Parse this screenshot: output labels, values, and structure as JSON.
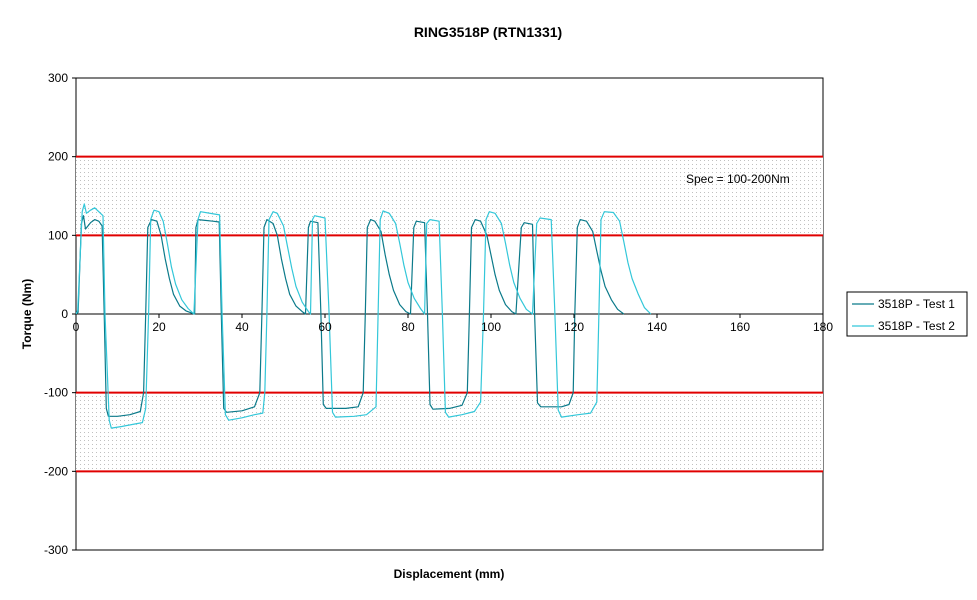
{
  "chart_data": {
    "type": "line",
    "title": "RING3518P (RTN1331)",
    "xlabel": "Displacement (mm)",
    "ylabel": "Torque (Nm)",
    "xlim": [
      0,
      180
    ],
    "ylim": [
      -300,
      300
    ],
    "xticks": [
      0,
      20,
      40,
      60,
      80,
      100,
      120,
      140,
      160,
      180
    ],
    "yticks": [
      300,
      200,
      100,
      0,
      -100,
      -200,
      -300
    ],
    "grid": false,
    "legend": "right",
    "spec_band_color": "#c0c0c0",
    "spec_line_color": "#e00000",
    "annotation": "Spec = 100-200Nm",
    "spec_lines": [
      200,
      100,
      -100,
      -200
    ],
    "series": [
      {
        "name": "3518P - Test 1",
        "color": "#0b7a8a",
        "points": [
          [
            0,
            0
          ],
          [
            0.5,
            2
          ],
          [
            1.3,
            115
          ],
          [
            1.8,
            125
          ],
          [
            2.3,
            108
          ],
          [
            3.5,
            116
          ],
          [
            4.5,
            120
          ],
          [
            5.5,
            118
          ],
          [
            6.3,
            112
          ],
          [
            6.8,
            0
          ],
          [
            7.3,
            -120
          ],
          [
            7.8,
            -130
          ],
          [
            10,
            -130
          ],
          [
            13,
            -128
          ],
          [
            15.5,
            -124
          ],
          [
            16.3,
            -100
          ],
          [
            16.8,
            0
          ],
          [
            17.3,
            110
          ],
          [
            18.2,
            120
          ],
          [
            19.5,
            118
          ],
          [
            20.5,
            100
          ],
          [
            21.5,
            70
          ],
          [
            22.5,
            45
          ],
          [
            23.5,
            25
          ],
          [
            25,
            10
          ],
          [
            26.5,
            4
          ],
          [
            28,
            1
          ],
          [
            28.6,
            0
          ],
          [
            28.9,
            110
          ],
          [
            29.4,
            120
          ],
          [
            33,
            118
          ],
          [
            34.5,
            117
          ],
          [
            35,
            0
          ],
          [
            35.6,
            -120
          ],
          [
            36.3,
            -125
          ],
          [
            40,
            -123
          ],
          [
            43,
            -118
          ],
          [
            44.3,
            -100
          ],
          [
            44.8,
            0
          ],
          [
            45.3,
            110
          ],
          [
            46,
            120
          ],
          [
            47.5,
            115
          ],
          [
            48.5,
            100
          ],
          [
            49.5,
            70
          ],
          [
            50.5,
            45
          ],
          [
            51.5,
            25
          ],
          [
            53,
            10
          ],
          [
            54.5,
            3
          ],
          [
            55.3,
            0
          ],
          [
            56,
            110
          ],
          [
            56.5,
            118
          ],
          [
            58.3,
            116
          ],
          [
            59,
            0
          ],
          [
            59.6,
            -115
          ],
          [
            60.3,
            -120
          ],
          [
            65,
            -120
          ],
          [
            68,
            -118
          ],
          [
            69.2,
            -100
          ],
          [
            69.7,
            0
          ],
          [
            70.2,
            110
          ],
          [
            71,
            120
          ],
          [
            72,
            118
          ],
          [
            73.5,
            105
          ],
          [
            74.5,
            75
          ],
          [
            75.5,
            50
          ],
          [
            76.5,
            30
          ],
          [
            78,
            12
          ],
          [
            79.5,
            3
          ],
          [
            80.6,
            0
          ],
          [
            81.4,
            110
          ],
          [
            82,
            118
          ],
          [
            84,
            116
          ],
          [
            84.7,
            0
          ],
          [
            85.3,
            -115
          ],
          [
            86,
            -121
          ],
          [
            90,
            -120
          ],
          [
            93,
            -116
          ],
          [
            94.3,
            -100
          ],
          [
            94.8,
            0
          ],
          [
            95.3,
            110
          ],
          [
            96.2,
            120
          ],
          [
            97.5,
            118
          ],
          [
            99,
            100
          ],
          [
            100,
            75
          ],
          [
            101,
            50
          ],
          [
            102,
            30
          ],
          [
            103.5,
            12
          ],
          [
            105,
            3
          ],
          [
            106,
            0
          ],
          [
            107.3,
            110
          ],
          [
            108,
            116
          ],
          [
            110,
            114
          ],
          [
            110.5,
            0
          ],
          [
            111.2,
            -113
          ],
          [
            112,
            -118
          ],
          [
            117,
            -118
          ],
          [
            118.8,
            -115
          ],
          [
            119.8,
            -100
          ],
          [
            120.2,
            0
          ],
          [
            120.8,
            110
          ],
          [
            121.5,
            120
          ],
          [
            123,
            118
          ],
          [
            124.5,
            105
          ],
          [
            125.5,
            80
          ],
          [
            126.5,
            55
          ],
          [
            127.5,
            35
          ],
          [
            129,
            18
          ],
          [
            130.5,
            6
          ],
          [
            132,
            0
          ]
        ]
      },
      {
        "name": "3518P - Test 2",
        "color": "#33c7d9",
        "points": [
          [
            0,
            0
          ],
          [
            0.4,
            5
          ],
          [
            1.5,
            130
          ],
          [
            2,
            140
          ],
          [
            2.5,
            128
          ],
          [
            3.5,
            132
          ],
          [
            4.5,
            135
          ],
          [
            5.5,
            130
          ],
          [
            6.5,
            125
          ],
          [
            7,
            0
          ],
          [
            8,
            -135
          ],
          [
            8.5,
            -145
          ],
          [
            11,
            -143
          ],
          [
            14,
            -140
          ],
          [
            16,
            -138
          ],
          [
            16.8,
            -120
          ],
          [
            17.5,
            0
          ],
          [
            18,
            120
          ],
          [
            18.8,
            132
          ],
          [
            20,
            130
          ],
          [
            21,
            118
          ],
          [
            22,
            90
          ],
          [
            23,
            60
          ],
          [
            24,
            38
          ],
          [
            25.5,
            18
          ],
          [
            27,
            7
          ],
          [
            28.4,
            0
          ],
          [
            29.4,
            120
          ],
          [
            30,
            130
          ],
          [
            33.5,
            127
          ],
          [
            34.6,
            126
          ],
          [
            35.2,
            0
          ],
          [
            36,
            -128
          ],
          [
            36.8,
            -135
          ],
          [
            40,
            -132
          ],
          [
            43,
            -128
          ],
          [
            45,
            -126
          ],
          [
            45.5,
            -100
          ],
          [
            46,
            0
          ],
          [
            46.5,
            120
          ],
          [
            47.5,
            130
          ],
          [
            48.5,
            128
          ],
          [
            50,
            112
          ],
          [
            51,
            85
          ],
          [
            52,
            58
          ],
          [
            53,
            35
          ],
          [
            54.5,
            15
          ],
          [
            56,
            3
          ],
          [
            56.5,
            0
          ],
          [
            57,
            120
          ],
          [
            57.5,
            125
          ],
          [
            60,
            122
          ],
          [
            61,
            0
          ],
          [
            61.8,
            -125
          ],
          [
            62.5,
            -131
          ],
          [
            67,
            -130
          ],
          [
            70,
            -128
          ],
          [
            72.3,
            -118
          ],
          [
            72.8,
            0
          ],
          [
            73.3,
            120
          ],
          [
            74,
            131
          ],
          [
            75.5,
            128
          ],
          [
            77,
            115
          ],
          [
            78,
            90
          ],
          [
            79,
            62
          ],
          [
            80,
            40
          ],
          [
            81.5,
            20
          ],
          [
            83,
            7
          ],
          [
            84,
            0
          ],
          [
            84.5,
            115
          ],
          [
            85.3,
            120
          ],
          [
            87.5,
            118
          ],
          [
            88.3,
            0
          ],
          [
            89,
            -125
          ],
          [
            89.8,
            -131
          ],
          [
            93,
            -128
          ],
          [
            96,
            -124
          ],
          [
            97.5,
            -112
          ],
          [
            98.2,
            0
          ],
          [
            98.8,
            120
          ],
          [
            99.6,
            130
          ],
          [
            101,
            128
          ],
          [
            102.5,
            115
          ],
          [
            103.5,
            90
          ],
          [
            104.5,
            62
          ],
          [
            105.5,
            40
          ],
          [
            107,
            20
          ],
          [
            108.5,
            6
          ],
          [
            110,
            0
          ],
          [
            111,
            115
          ],
          [
            111.8,
            122
          ],
          [
            114.5,
            120
          ],
          [
            115.4,
            0
          ],
          [
            116.2,
            -122
          ],
          [
            117,
            -131
          ],
          [
            121,
            -128
          ],
          [
            124,
            -126
          ],
          [
            125.5,
            -112
          ],
          [
            126,
            0
          ],
          [
            126.5,
            120
          ],
          [
            127.3,
            130
          ],
          [
            129.5,
            129
          ],
          [
            131,
            118
          ],
          [
            132,
            92
          ],
          [
            133,
            65
          ],
          [
            134,
            45
          ],
          [
            135.5,
            25
          ],
          [
            137,
            8
          ],
          [
            138.5,
            0
          ]
        ]
      }
    ]
  }
}
